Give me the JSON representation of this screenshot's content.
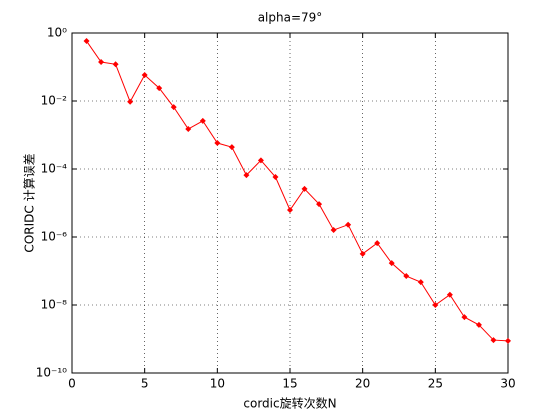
{
  "chart_data": {
    "type": "line",
    "title": "alpha=79°",
    "x_label": "cordic旋转次数N",
    "y_label": "CORIDC 计算误差",
    "x": [
      1,
      2,
      3,
      4,
      5,
      6,
      7,
      8,
      9,
      10,
      11,
      12,
      13,
      14,
      15,
      16,
      17,
      18,
      19,
      20,
      21,
      22,
      23,
      24,
      25,
      26,
      27,
      28,
      29,
      30
    ],
    "values": [
      0.58,
      0.14,
      0.12,
      0.0095,
      0.058,
      0.024,
      0.0066,
      0.0015,
      0.0026,
      0.00058,
      0.00044,
      6.6e-05,
      0.00018,
      5.8e-05,
      6.2e-06,
      2.6e-05,
      9.3e-06,
      1.6e-06,
      2.3e-06,
      3.2e-07,
      6.6e-07,
      1.7e-07,
      7.1e-08,
      4.7e-08,
      1e-08,
      2e-08,
      4.4e-09,
      2.6e-09,
      9.3e-10,
      8.8e-10
    ],
    "color": "#ff0000",
    "xlim": [
      0,
      30
    ],
    "xticks": [
      0,
      5,
      10,
      15,
      20,
      25,
      30
    ],
    "ylim": [
      1e-10,
      1
    ],
    "y_scale": "log",
    "yticks": [
      {
        "value": 1e-10,
        "label": "10⁻¹⁰"
      },
      {
        "value": 1e-08,
        "label": "10⁻⁸"
      },
      {
        "value": 1e-06,
        "label": "10⁻⁶"
      },
      {
        "value": 0.0001,
        "label": "10⁻⁴"
      },
      {
        "value": 0.01,
        "label": "10⁻²"
      },
      {
        "value": 1,
        "label": "10⁰"
      }
    ],
    "grid": true
  }
}
